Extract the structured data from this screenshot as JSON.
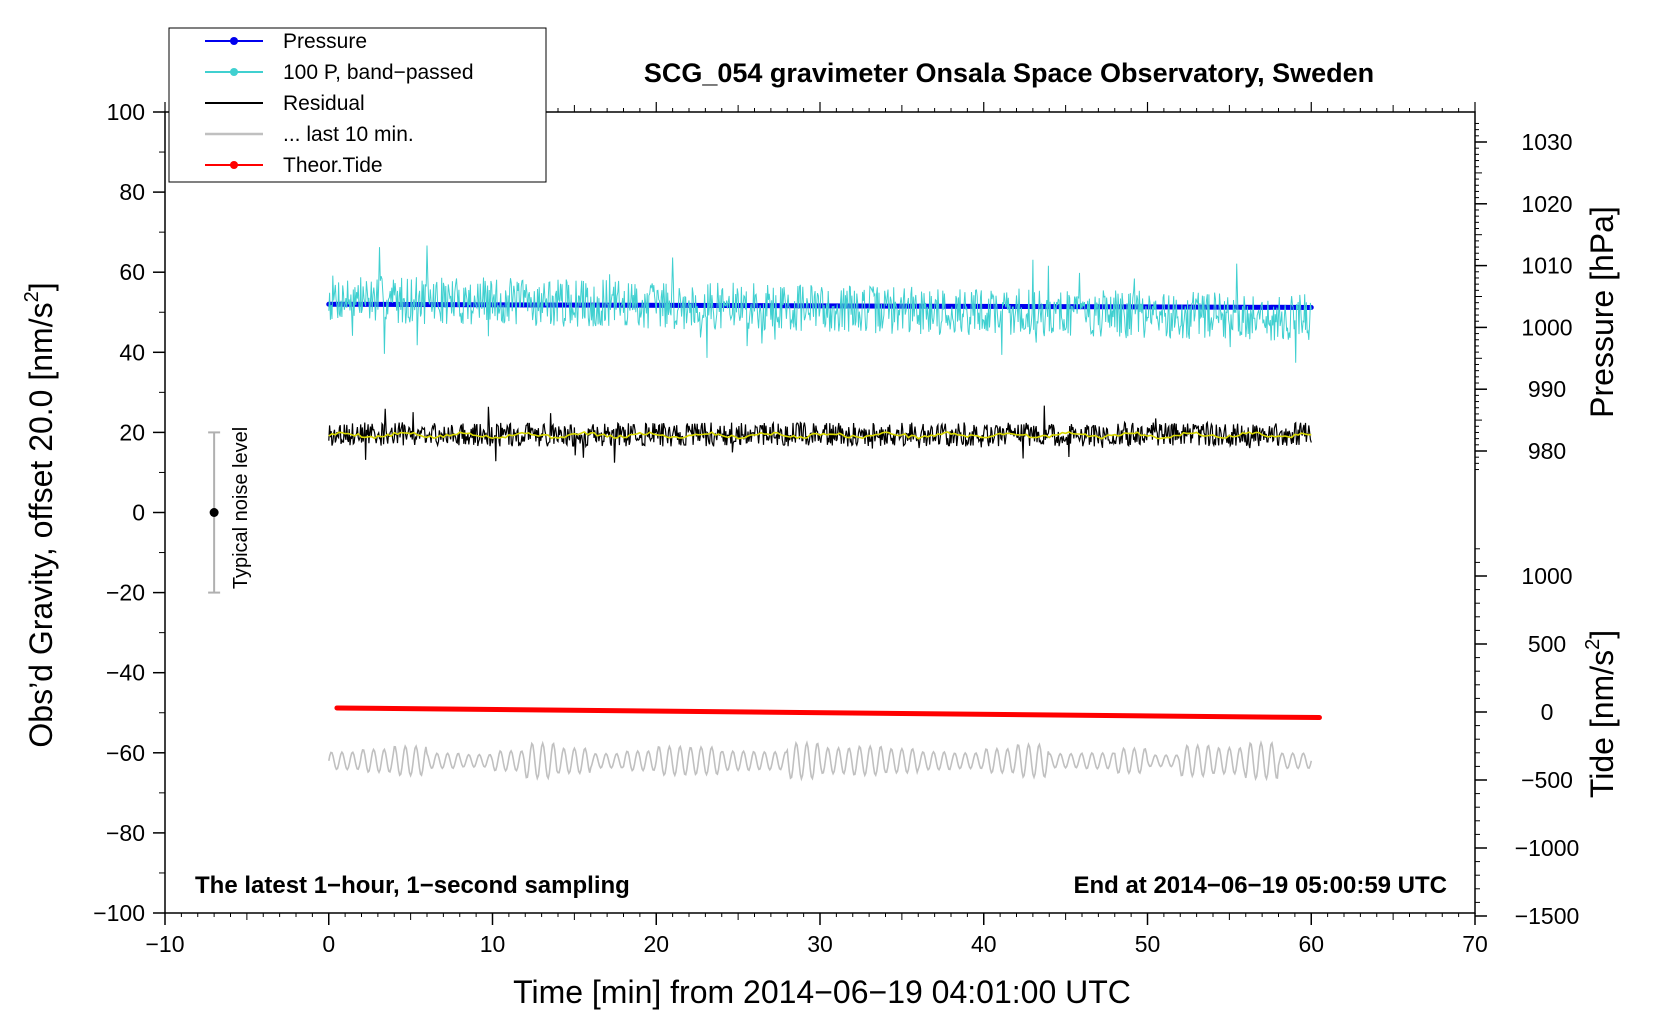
{
  "chart_data": {
    "type": "line",
    "title": "SCG_054 gravimeter Onsala Space Observatory, Sweden",
    "xlabel": "Time [min] from 2014−06−19 04:01:00 UTC",
    "ylabel_left": "Obs'd Gravity, offset 20.0 [nm/s²]",
    "ylabel_left_parts": [
      "Obs’d Gravity, offset 20.0 [nm/s",
      "2",
      "]"
    ],
    "ylabel_pressure": "Pressure [hPa]",
    "ylabel_tide_parts": [
      "Tide [nm/s",
      "2",
      "]"
    ],
    "xlim": [
      -10,
      70
    ],
    "ylim_left": [
      -100,
      100
    ],
    "ylim_pressure": [
      975,
      1032
    ],
    "ylim_tide": [
      -1500,
      1500
    ],
    "x_ticks": [
      "−10",
      "0",
      "10",
      "20",
      "30",
      "40",
      "50",
      "60",
      "70"
    ],
    "x_tick_values": [
      -10,
      0,
      10,
      20,
      30,
      40,
      50,
      60,
      70
    ],
    "y_left_ticks": [
      "100",
      "80",
      "60",
      "40",
      "20",
      "0",
      "−20",
      "−40",
      "−60",
      "−80",
      "−100"
    ],
    "y_left_tick_values": [
      100,
      80,
      60,
      40,
      20,
      0,
      -20,
      -40,
      -60,
      -80,
      -100
    ],
    "y_pressure_ticks": [
      "1030",
      "1020",
      "1010",
      "1000",
      "990",
      "980"
    ],
    "y_pressure_tick_values": [
      1030,
      1020,
      1010,
      1000,
      990,
      980
    ],
    "y_tide_ticks": [
      "1000",
      "500",
      "0",
      "−500",
      "−1000",
      "−1500"
    ],
    "y_tide_tick_values": [
      1000,
      500,
      0,
      -500,
      -1000,
      -1500
    ],
    "series": [
      {
        "name": "Pressure",
        "color": "#0000ee",
        "x": [
          0,
          60
        ],
        "y": [
          52,
          51.2
        ],
        "axis": "left",
        "style": "thick"
      },
      {
        "name": "100 P, band−passed",
        "color": "#40d0d0",
        "x_range": [
          0,
          60
        ],
        "baseline": 51,
        "amplitude": 6,
        "axis": "left",
        "style": "noise"
      },
      {
        "name": "Residual",
        "color": "#000000",
        "x_range": [
          0,
          60
        ],
        "baseline": 19.5,
        "amplitude": 3,
        "axis": "left",
        "style": "noise"
      },
      {
        "name": "",
        "color": "#d8d800",
        "x_range": [
          0,
          60
        ],
        "baseline": 19.3,
        "amplitude": 0.8,
        "axis": "left",
        "style": "smooth"
      },
      {
        "name": "... last 10 min.",
        "color": "#c0c0c0",
        "x_range": [
          0,
          60
        ],
        "baseline": -62,
        "amplitude": 3.5,
        "axis": "left",
        "style": "wave"
      },
      {
        "name": "Theor.Tide",
        "color": "#ff0000",
        "x": [
          0.5,
          60.5
        ],
        "y": [
          -48.8,
          -51.2
        ],
        "axis": "left",
        "style": "thick"
      }
    ],
    "noise_bar": {
      "x": -7,
      "center": 0,
      "low": -20,
      "high": 20,
      "label": "Typical noise level"
    },
    "annotation_left": "The latest 1−hour, 1−second sampling",
    "annotation_right": "End at 2014−06−19 05:00:59 UTC",
    "legend": {
      "placement": "top-left",
      "entries": [
        {
          "label": "Pressure",
          "color": "#0000ee",
          "marker": true
        },
        {
          "label": "100 P, band−passed",
          "color": "#40d0d0",
          "marker": true
        },
        {
          "label": "Residual",
          "color": "#000000",
          "marker": false
        },
        {
          "label": "... last 10 min.",
          "color": "#c0c0c0",
          "marker": false
        },
        {
          "label": "Theor.Tide",
          "color": "#ff0000",
          "marker": true
        }
      ]
    },
    "grid": false
  }
}
